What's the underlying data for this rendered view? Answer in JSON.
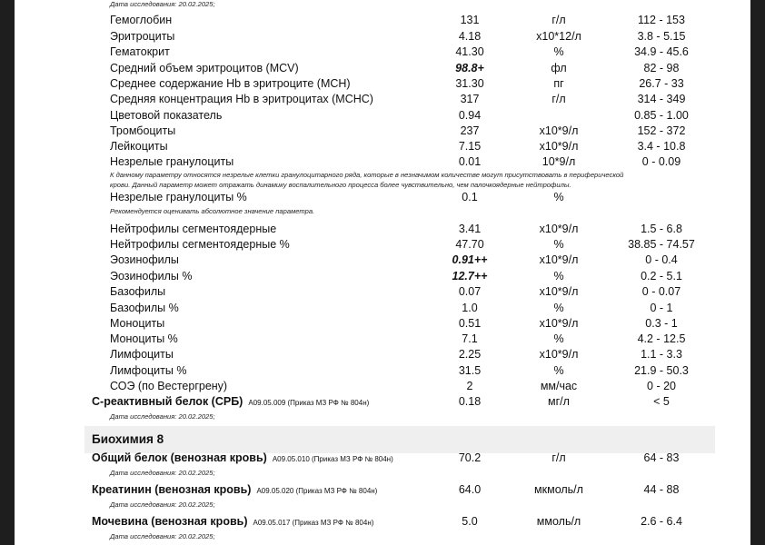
{
  "study_date_label": "Дата исследования: 20.02.2025;",
  "cbc_rows": [
    {
      "name": "Гемоглобин",
      "value": "131",
      "unit": "г/л",
      "ref": "112 - 153"
    },
    {
      "name": "Эритроциты",
      "value": "4.18",
      "unit": "x10*12/л",
      "ref": "3.8 - 5.15"
    },
    {
      "name": "Гематокрит",
      "value": "41.30",
      "unit": "%",
      "ref": "34.9 - 45.6"
    },
    {
      "name": "Средний объем эритроцитов (MCV)",
      "value": "98.8+",
      "unit": "фл",
      "ref": "82 - 98",
      "flag": true
    },
    {
      "name": "Среднее содержание Hb в эритроците (MCH)",
      "value": "31.30",
      "unit": "пг",
      "ref": "26.7 - 33"
    },
    {
      "name": "Средняя концентрация Hb в эритроцитах (MCHC)",
      "value": "317",
      "unit": "г/л",
      "ref": "314 - 349"
    },
    {
      "name": "Цветовой показатель",
      "value": "0.94",
      "unit": "",
      "ref": "0.85 - 1.00"
    },
    {
      "name": "Тромбоциты",
      "value": "237",
      "unit": "x10*9/л",
      "ref": "152 - 372"
    },
    {
      "name": "Лейкоциты",
      "value": "7.15",
      "unit": "x10*9/л",
      "ref": "3.4 - 10.8"
    },
    {
      "name": " Незрелые гранулоциты",
      "value": "0.01",
      "unit": "10*9/л",
      "ref": "0 - 0.09"
    },
    {
      "name": " Незрелые гранулоциты %",
      "value": "0.1",
      "unit": "%",
      "ref": ""
    },
    {
      "name": "Нейтрофилы сегментоядерные",
      "value": "3.41",
      "unit": "x10*9/л",
      "ref": "1.5 - 6.8"
    },
    {
      "name": "Нейтрофилы сегментоядерные %",
      "value": "47.70",
      "unit": "%",
      "ref": "38.85 - 74.57"
    },
    {
      "name": "Эозинофилы",
      "value": "0.91++",
      "unit": "x10*9/л",
      "ref": "0 - 0.4",
      "flag": true
    },
    {
      "name": "Эозинофилы %",
      "value": "12.7++",
      "unit": "%",
      "ref": "0.2 - 5.1",
      "flag": true
    },
    {
      "name": "Базофилы",
      "value": "0.07",
      "unit": "x10*9/л",
      "ref": "0 - 0.07"
    },
    {
      "name": "Базофилы %",
      "value": "1.0",
      "unit": "%",
      "ref": "0 - 1"
    },
    {
      "name": "Моноциты",
      "value": "0.51",
      "unit": "x10*9/л",
      "ref": "0.3 - 1"
    },
    {
      "name": "Моноциты %",
      "value": "7.1",
      "unit": "%",
      "ref": "4.2 - 12.5"
    },
    {
      "name": "Лимфоциты",
      "value": "2.25",
      "unit": "x10*9/л",
      "ref": "1.1 - 3.3"
    },
    {
      "name": "Лимфоциты %",
      "value": "31.5",
      "unit": "%",
      "ref": "21.9 - 50.3"
    },
    {
      "name": "СОЭ (по Вестергрену)",
      "value": "2",
      "unit": "мм/час",
      "ref": "0 - 20"
    }
  ],
  "notes": {
    "immature_1": "К данному параметру относятся незрелые клетки гранулоцитарного ряда, которые  в незначимом количестве могут присутствовать в периферической",
    "immature_2": "крови. Данный параметр может отражать динамику воспалительного процесса более чувствительно, чем палочкоядерные нейтрофилы.",
    "immature_pct": "Рекомендуется оценивать абсолютное значение параметра."
  },
  "crp": {
    "name": "С-реактивный белок (СРБ)",
    "code": "A09.05.009 (Приказ МЗ РФ № 804н)",
    "value": "0.18",
    "unit": "мг/л",
    "ref": "< 5"
  },
  "section_title": "Биохимия 8",
  "biochem": [
    {
      "name": "Общий белок (венозная кровь)",
      "code": "A09.05.010 (Приказ МЗ РФ № 804н)",
      "value": "70.2",
      "unit": "г/л",
      "ref": "64 - 83"
    },
    {
      "name": "Креатинин (венозная кровь)",
      "code": "A09.05.020 (Приказ МЗ РФ № 804н)",
      "value": "64.0",
      "unit": "мкмоль/л",
      "ref": "44 - 88"
    },
    {
      "name": "Мочевина (венозная кровь)",
      "code": "A09.05.017 (Приказ МЗ РФ № 804н)",
      "value": "5.0",
      "unit": "ммоль/л",
      "ref": "2.6 - 6.4"
    }
  ]
}
